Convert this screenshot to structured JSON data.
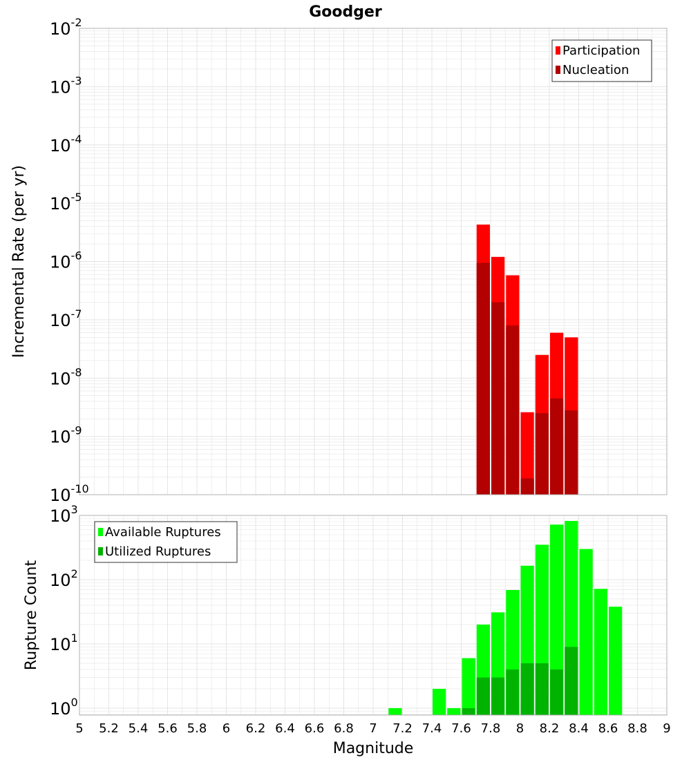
{
  "title": "Goodger",
  "xlabel": "Magnitude",
  "colors": {
    "participation": "#ff0000",
    "nucleation": "#b30000",
    "available": "#00ff00",
    "utilized": "#00b300",
    "grid": "#e4e4e4",
    "frame": "#b0b0b0"
  },
  "chart_data": [
    {
      "type": "bar",
      "ylabel": "Incremental Rate (per yr)",
      "yscale": "log",
      "ylim": [
        1e-10,
        0.01
      ],
      "xlim": [
        5,
        9
      ],
      "bar_width": 0.1,
      "legend_position": "top-right",
      "x_ticks": [
        "5",
        "5.2",
        "5.4",
        "5.6",
        "5.8",
        "6",
        "6.2",
        "6.4",
        "6.6",
        "6.8",
        "7",
        "7.2",
        "7.4",
        "7.6",
        "7.8",
        "8",
        "8.2",
        "8.4",
        "8.6",
        "8.8",
        "9"
      ],
      "y_tick_mantissa": "10",
      "y_tick_exponents": [
        "-10",
        "-9",
        "-8",
        "-7",
        "-6",
        "-5",
        "-4",
        "-3",
        "-2"
      ],
      "x": [
        7.75,
        7.85,
        7.95,
        8.05,
        8.15,
        8.25,
        8.35
      ],
      "series": [
        {
          "name": "Participation",
          "values": [
            4.3e-06,
            1.2e-06,
            5.8e-07,
            2.6e-09,
            2.5e-08,
            6e-08,
            5e-08
          ]
        },
        {
          "name": "Nucleation",
          "values": [
            9.5e-07,
            2e-07,
            8e-08,
            1.9e-10,
            2.5e-09,
            4.5e-09,
            2.8e-09
          ]
        }
      ]
    },
    {
      "type": "bar",
      "ylabel": "Rupture Count",
      "yscale": "log",
      "ylim": [
        0.78,
        1000
      ],
      "xlim": [
        5,
        9
      ],
      "bar_width": 0.1,
      "legend_position": "top-left",
      "y_tick_mantissa": "10",
      "y_tick_exponents": [
        "0",
        "1",
        "2",
        "3"
      ],
      "x": [
        7.15,
        7.45,
        7.55,
        7.65,
        7.75,
        7.85,
        7.95,
        8.05,
        8.15,
        8.25,
        8.35,
        8.45,
        8.55,
        8.65
      ],
      "series": [
        {
          "name": "Available Ruptures",
          "values": [
            1,
            2,
            1,
            6,
            20,
            31,
            69,
            165,
            350,
            720,
            820,
            300,
            72,
            38
          ]
        },
        {
          "name": "Utilized Ruptures",
          "values": [
            null,
            null,
            null,
            1,
            3,
            3,
            4,
            5,
            5,
            4,
            9,
            null,
            null,
            null
          ]
        }
      ]
    }
  ]
}
